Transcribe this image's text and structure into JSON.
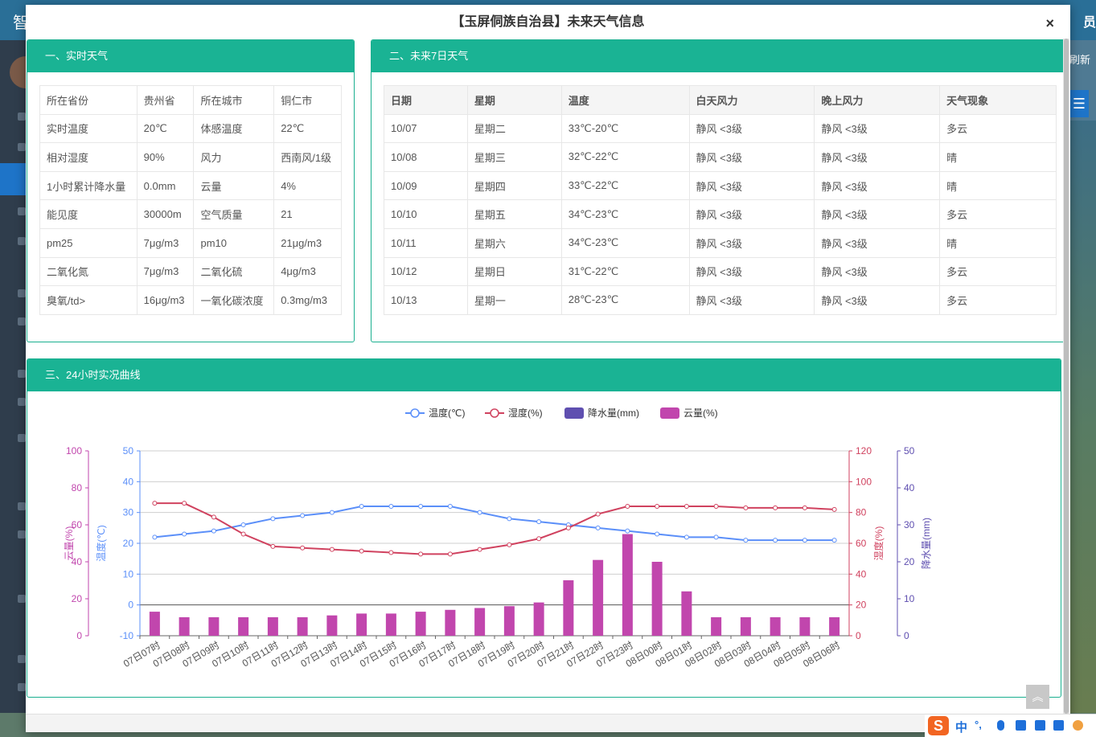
{
  "background": {
    "brand": "智",
    "top_right": "员",
    "refresh": "刷新",
    "menu_icon": "hamburger-icon"
  },
  "modal": {
    "title": "【玉屏侗族自治县】未来天气信息",
    "close": "×"
  },
  "realtime": {
    "heading": "一、实时天气",
    "rows": [
      [
        "所在省份",
        "贵州省",
        "所在城市",
        "铜仁市"
      ],
      [
        "实时温度",
        "20℃",
        "体感温度",
        "22℃"
      ],
      [
        "相对湿度",
        "90%",
        "风力",
        "西南风/1级"
      ],
      [
        "1小时累计降水量",
        "0.0mm",
        "云量",
        "4%"
      ],
      [
        "能见度",
        "30000m",
        "空气质量",
        "21"
      ],
      [
        "pm25",
        "7μg/m3",
        "pm10",
        "21μg/m3"
      ],
      [
        "二氧化氮",
        "7μg/m3",
        "二氧化硫",
        "4μg/m3"
      ],
      [
        "臭氧/td>",
        "16μg/m3",
        "一氧化碳浓度",
        "0.3mg/m3"
      ]
    ]
  },
  "forecast": {
    "heading": "二、未来7日天气",
    "columns": [
      "日期",
      "星期",
      "温度",
      "白天风力",
      "晚上风力",
      "天气现象"
    ],
    "rows": [
      [
        "10/07",
        "星期二",
        "33℃-20℃",
        "静风 <3级",
        "静风 <3级",
        "多云"
      ],
      [
        "10/08",
        "星期三",
        "32℃-22℃",
        "静风 <3级",
        "静风 <3级",
        "晴"
      ],
      [
        "10/09",
        "星期四",
        "33℃-22℃",
        "静风 <3级",
        "静风 <3级",
        "晴"
      ],
      [
        "10/10",
        "星期五",
        "34℃-23℃",
        "静风 <3级",
        "静风 <3级",
        "多云"
      ],
      [
        "10/11",
        "星期六",
        "34℃-23℃",
        "静风 <3级",
        "静风 <3级",
        "晴"
      ],
      [
        "10/12",
        "星期日",
        "31℃-22℃",
        "静风 <3级",
        "静风 <3级",
        "多云"
      ],
      [
        "10/13",
        "星期一",
        "28℃-23℃",
        "静风 <3级",
        "静风 <3级",
        "多云"
      ]
    ]
  },
  "curve": {
    "heading": "三、24小时实况曲线"
  },
  "tray": {
    "logo": "S",
    "lang": "中",
    "punct": "°,"
  },
  "chart_data": {
    "type": "line",
    "categories": [
      "07日07时",
      "07日08时",
      "07日09时",
      "07日10时",
      "07日11时",
      "07日12时",
      "07日13时",
      "07日14时",
      "07日15时",
      "07日16时",
      "07日17时",
      "07日18时",
      "07日19时",
      "07日20时",
      "07日21时",
      "07日22时",
      "07日23时",
      "08日00时",
      "08日01时",
      "08日02时",
      "08日03时",
      "08日04时",
      "08日05时",
      "08日06时"
    ],
    "series": [
      {
        "name": "温度(℃)",
        "type": "line",
        "axis": "temp",
        "color": "#5b8ff9",
        "values": [
          22,
          23,
          24,
          26,
          28,
          29,
          30,
          32,
          32,
          32,
          32,
          30,
          28,
          27,
          26,
          25,
          24,
          23,
          22,
          22,
          21,
          21,
          21,
          21
        ]
      },
      {
        "name": "湿度(%)",
        "type": "line",
        "axis": "humidity",
        "color": "#d0425f",
        "values": [
          86,
          86,
          77,
          66,
          58,
          57,
          56,
          55,
          54,
          53,
          53,
          56,
          59,
          63,
          70,
          79,
          84,
          84,
          84,
          84,
          83,
          83,
          83,
          82
        ]
      },
      {
        "name": "降水量(mm)",
        "type": "bar",
        "axis": "rain",
        "color": "#5f4fb0",
        "values": [
          0,
          0,
          0,
          0,
          0,
          0,
          0,
          0,
          0,
          0,
          0,
          0,
          0,
          0,
          0,
          0,
          0,
          0,
          0,
          0,
          0,
          0,
          0,
          0
        ]
      },
      {
        "name": "云量(%)",
        "type": "bar",
        "axis": "cloud",
        "color": "#c146ad",
        "values": [
          13,
          10,
          10,
          10,
          10,
          10,
          11,
          12,
          12,
          13,
          14,
          15,
          16,
          18,
          30,
          41,
          55,
          40,
          24,
          10,
          10,
          10,
          10,
          10
        ]
      }
    ],
    "axes": {
      "cloud": {
        "label": "云量(%)",
        "min": 0,
        "max": 100,
        "ticks": [
          0,
          20,
          40,
          60,
          80,
          100
        ],
        "color": "#c146ad"
      },
      "temp": {
        "label": "温度(℃)",
        "min": -10,
        "max": 50,
        "ticks": [
          -10,
          0,
          10,
          20,
          30,
          40,
          50
        ],
        "color": "#5b8ff9"
      },
      "humidity": {
        "label": "湿度(%)",
        "min": 0,
        "max": 120,
        "ticks": [
          0,
          20,
          40,
          60,
          80,
          100,
          120
        ],
        "color": "#d0425f"
      },
      "rain": {
        "label": "降水量(mm)",
        "min": 0,
        "max": 50,
        "ticks": [
          0,
          10,
          20,
          30,
          40,
          50
        ],
        "color": "#5f4fb0"
      }
    },
    "legend_position": "top-center",
    "grid": true
  }
}
